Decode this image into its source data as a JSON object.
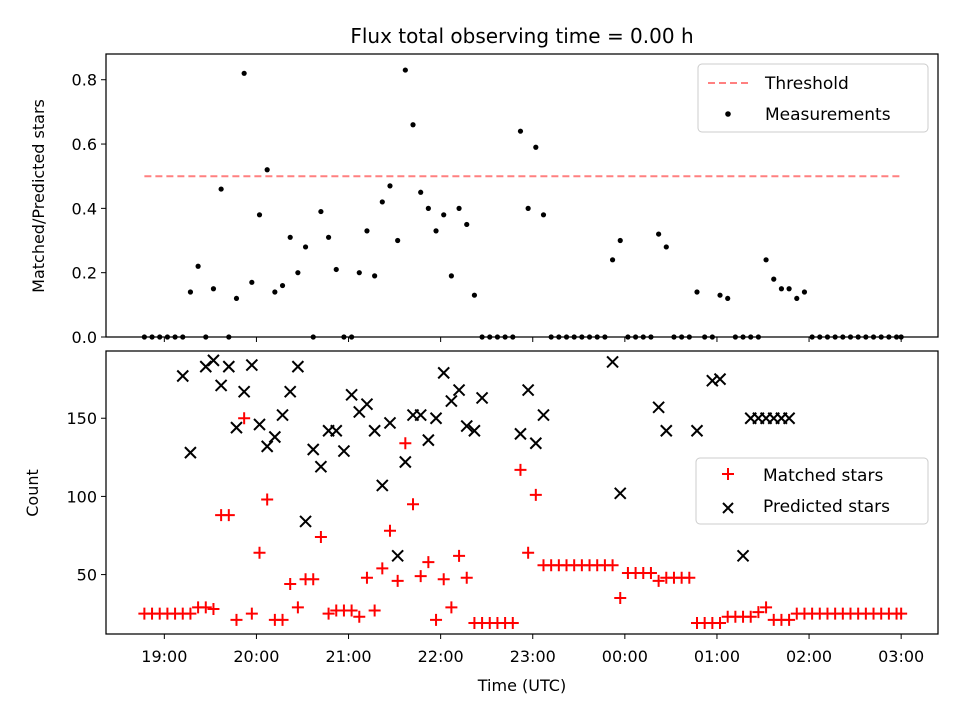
{
  "chart_data": [
    {
      "type": "scatter",
      "title": "Flux total observing time = 0.00 h",
      "xlabel": "",
      "ylabel": "Matched/Predicted stars",
      "ylim": [
        0,
        0.88
      ],
      "yticks": [
        0.0,
        0.2,
        0.4,
        0.6,
        0.8
      ],
      "ytick_labels": [
        "0.0",
        "0.2",
        "0.4",
        "0.6",
        "0.8"
      ],
      "threshold": {
        "name": "Threshold",
        "value": 0.5,
        "x_start": "18:47",
        "x_end": "03:00",
        "color": "#ff8080",
        "style": "dashed"
      },
      "legend": {
        "position": "top-right",
        "entries": [
          "Threshold",
          "Measurements"
        ]
      },
      "series": [
        {
          "name": "Measurements",
          "color": "#000000",
          "marker": "dot",
          "x": [
            "18:47",
            "18:52",
            "18:57",
            "19:02",
            "19:07",
            "19:12",
            "19:17",
            "19:22",
            "19:27",
            "19:32",
            "19:37",
            "19:42",
            "19:47",
            "19:52",
            "19:57",
            "20:02",
            "20:07",
            "20:12",
            "20:17",
            "20:22",
            "20:27",
            "20:32",
            "20:37",
            "20:42",
            "20:47",
            "20:52",
            "20:57",
            "21:02",
            "21:07",
            "21:12",
            "21:17",
            "21:22",
            "21:27",
            "21:32",
            "21:37",
            "21:42",
            "21:47",
            "21:52",
            "21:57",
            "22:02",
            "22:07",
            "22:12",
            "22:17",
            "22:22",
            "22:27",
            "22:32",
            "22:37",
            "22:42",
            "22:47",
            "22:52",
            "22:57",
            "23:02",
            "23:07",
            "23:12",
            "23:17",
            "23:22",
            "23:27",
            "23:32",
            "23:37",
            "23:42",
            "23:47",
            "23:52",
            "23:57",
            "00:02",
            "00:07",
            "00:12",
            "00:17",
            "00:22",
            "00:27",
            "00:32",
            "00:37",
            "00:42",
            "00:47",
            "00:52",
            "00:57",
            "01:02",
            "01:07",
            "01:12",
            "01:17",
            "01:22",
            "01:27",
            "01:32",
            "01:37",
            "01:42",
            "01:47",
            "01:52",
            "01:57",
            "02:02",
            "02:07",
            "02:12",
            "02:17",
            "02:22",
            "02:27",
            "02:32",
            "02:37",
            "02:42",
            "02:47",
            "02:52",
            "02:57",
            "03:00"
          ],
          "y": [
            0.0,
            0.0,
            0.0,
            0.0,
            0.0,
            0.0,
            0.14,
            0.22,
            0.0,
            0.15,
            0.46,
            0.0,
            0.12,
            0.82,
            0.17,
            0.38,
            0.52,
            0.14,
            0.16,
            0.31,
            0.2,
            0.28,
            0.0,
            0.39,
            0.31,
            0.21,
            0.0,
            0.0,
            0.2,
            0.33,
            0.19,
            0.42,
            0.47,
            0.3,
            0.83,
            0.66,
            0.45,
            0.4,
            0.33,
            0.38,
            0.19,
            0.4,
            0.35,
            0.13,
            0.0,
            0.0,
            0.0,
            0.0,
            0.0,
            0.64,
            0.4,
            0.59,
            0.38,
            0.0,
            0.0,
            0.0,
            0.0,
            0.0,
            0.0,
            0.0,
            0.0,
            0.24,
            0.3,
            0.0,
            0.0,
            0.0,
            0.0,
            0.32,
            0.28,
            0.0,
            0.0,
            0.0,
            0.14,
            0.0,
            0.0,
            0.13,
            0.12,
            0.0,
            0.0,
            0.0,
            0.0,
            0.24,
            0.18,
            0.15,
            0.15,
            0.12,
            0.14,
            0.0,
            0.0,
            0.0,
            0.0,
            0.0,
            0.0,
            0.0,
            0.0,
            0.0,
            0.0,
            0.0,
            0.0,
            0.0
          ]
        }
      ]
    },
    {
      "type": "scatter",
      "title": "",
      "xlabel": "Time (UTC)",
      "ylabel": "Count",
      "ylim": [
        12,
        193
      ],
      "yticks": [
        50,
        100,
        150
      ],
      "ytick_labels": [
        "50",
        "100",
        "150"
      ],
      "xlim": [
        "18:22",
        "03:24"
      ],
      "xticks": [
        "19:00",
        "20:00",
        "21:00",
        "22:00",
        "23:00",
        "00:00",
        "01:00",
        "02:00",
        "03:00"
      ],
      "legend": {
        "position": "center-right",
        "entries": [
          "Matched stars",
          "Predicted stars"
        ]
      },
      "series": [
        {
          "name": "Matched stars",
          "color": "#ff0000",
          "marker": "plus",
          "x": [
            "18:47",
            "18:52",
            "18:57",
            "19:02",
            "19:07",
            "19:12",
            "19:17",
            "19:22",
            "19:27",
            "19:32",
            "19:37",
            "19:42",
            "19:47",
            "19:52",
            "19:57",
            "20:02",
            "20:07",
            "20:12",
            "20:17",
            "20:22",
            "20:27",
            "20:32",
            "20:37",
            "20:42",
            "20:47",
            "20:52",
            "20:57",
            "21:02",
            "21:07",
            "21:12",
            "21:17",
            "21:22",
            "21:27",
            "21:32",
            "21:37",
            "21:42",
            "21:47",
            "21:52",
            "21:57",
            "22:02",
            "22:07",
            "22:12",
            "22:17",
            "22:22",
            "22:27",
            "22:32",
            "22:37",
            "22:42",
            "22:47",
            "22:52",
            "22:57",
            "23:02",
            "23:07",
            "23:12",
            "23:17",
            "23:22",
            "23:27",
            "23:32",
            "23:37",
            "23:42",
            "23:47",
            "23:52",
            "23:57",
            "00:02",
            "00:07",
            "00:12",
            "00:17",
            "00:22",
            "00:27",
            "00:32",
            "00:37",
            "00:42",
            "00:47",
            "00:52",
            "00:57",
            "01:02",
            "01:07",
            "01:12",
            "01:17",
            "01:22",
            "01:27",
            "01:32",
            "01:37",
            "01:42",
            "01:47",
            "01:52",
            "01:57",
            "02:02",
            "02:07",
            "02:12",
            "02:17",
            "02:22",
            "02:27",
            "02:32",
            "02:37",
            "02:42",
            "02:47",
            "02:52",
            "02:57",
            "03:00"
          ],
          "y": [
            25,
            25,
            25,
            25,
            25,
            25,
            25,
            29,
            29,
            28,
            88,
            88,
            21,
            150,
            25,
            64,
            98,
            21,
            21,
            44,
            29,
            47,
            47,
            74,
            25,
            27,
            27,
            27,
            23,
            48,
            27,
            54,
            78,
            46,
            134,
            95,
            49,
            58,
            21,
            47,
            29,
            62,
            48,
            19,
            19,
            19,
            19,
            19,
            19,
            117,
            64,
            101,
            56,
            56,
            56,
            56,
            56,
            56,
            56,
            56,
            56,
            56,
            35,
            51,
            51,
            51,
            51,
            46,
            48,
            48,
            48,
            48,
            19,
            19,
            19,
            19,
            23,
            23,
            23,
            23,
            26,
            29,
            21,
            21,
            21,
            25,
            25,
            25,
            25,
            25,
            25,
            25,
            25,
            25,
            25,
            25,
            25,
            25,
            25,
            25
          ]
        },
        {
          "name": "Predicted stars",
          "color": "#000000",
          "marker": "x",
          "x": [
            "19:12",
            "19:17",
            "19:27",
            "19:32",
            "19:37",
            "19:42",
            "19:47",
            "19:52",
            "19:57",
            "20:02",
            "20:07",
            "20:12",
            "20:17",
            "20:22",
            "20:27",
            "20:32",
            "20:37",
            "20:42",
            "20:47",
            "20:52",
            "20:57",
            "21:02",
            "21:07",
            "21:12",
            "21:17",
            "21:22",
            "21:27",
            "21:32",
            "21:37",
            "21:42",
            "21:47",
            "21:52",
            "21:57",
            "22:02",
            "22:07",
            "22:12",
            "22:17",
            "22:22",
            "22:27",
            "22:52",
            "22:57",
            "23:02",
            "23:07",
            "23:52",
            "23:57",
            "00:22",
            "00:27",
            "00:47",
            "00:57",
            "01:02",
            "01:17",
            "01:22",
            "01:27",
            "01:32",
            "01:37",
            "01:42",
            "01:47"
          ],
          "y": [
            177,
            128,
            183,
            187,
            171,
            183,
            144,
            167,
            184,
            146,
            132,
            138,
            152,
            167,
            183,
            84,
            130,
            119,
            142,
            142,
            129,
            165,
            154,
            159,
            142,
            107,
            147,
            62,
            122,
            152,
            152,
            136,
            150,
            179,
            161,
            168,
            145,
            142,
            163,
            140,
            168,
            134,
            152,
            186,
            102,
            157,
            142,
            142,
            174,
            175,
            62,
            150,
            150,
            150,
            150,
            150,
            150
          ]
        }
      ]
    }
  ]
}
